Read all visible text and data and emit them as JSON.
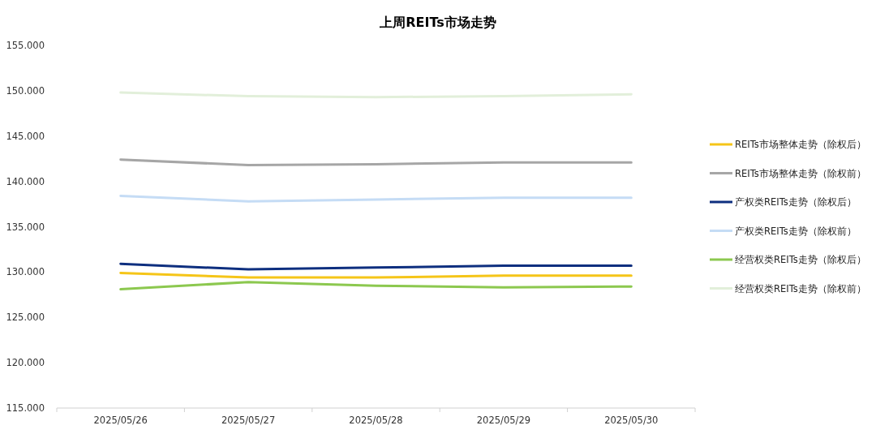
{
  "chart_data": {
    "type": "line",
    "title": "上周REITs市场走势",
    "categories": [
      "2025/05/26",
      "2025/05/27",
      "2025/05/28",
      "2025/05/29",
      "2025/05/30"
    ],
    "series": [
      {
        "name": "REITs市场整体走势（除权后）",
        "color": "#f5c518",
        "values": [
          129.9,
          129.4,
          129.4,
          129.6,
          129.6
        ]
      },
      {
        "name": "REITs市场整体走势（除权前）",
        "color": "#a6a6a6",
        "values": [
          142.4,
          141.8,
          141.9,
          142.1,
          142.1
        ]
      },
      {
        "name": "产权类REITs走势（除权后）",
        "color": "#0e2f7f",
        "values": [
          130.9,
          130.3,
          130.5,
          130.7,
          130.7
        ]
      },
      {
        "name": "产权类REITs走势（除权前）",
        "color": "#c5dcf5",
        "values": [
          138.4,
          137.8,
          138.0,
          138.2,
          138.2
        ]
      },
      {
        "name": "经营权类REITs走势（除权后）",
        "color": "#8cc84f",
        "values": [
          128.1,
          128.9,
          128.5,
          128.3,
          128.4
        ]
      },
      {
        "name": "经营权类REITs走势（除权前）",
        "color": "#e2efda",
        "values": [
          149.8,
          149.4,
          149.3,
          149.4,
          149.6
        ]
      }
    ],
    "ylim": [
      115,
      155
    ],
    "yticks": [
      {
        "value": 115,
        "label": "115.000"
      },
      {
        "value": 120,
        "label": "120.000"
      },
      {
        "value": 125,
        "label": "125.000"
      },
      {
        "value": 130,
        "label": "130.000"
      },
      {
        "value": 135,
        "label": "135.000"
      },
      {
        "value": 140,
        "label": "140.000"
      },
      {
        "value": 145,
        "label": "145.000"
      },
      {
        "value": 150,
        "label": "150.000"
      },
      {
        "value": 155,
        "label": "155.000"
      }
    ],
    "legend": "right"
  }
}
